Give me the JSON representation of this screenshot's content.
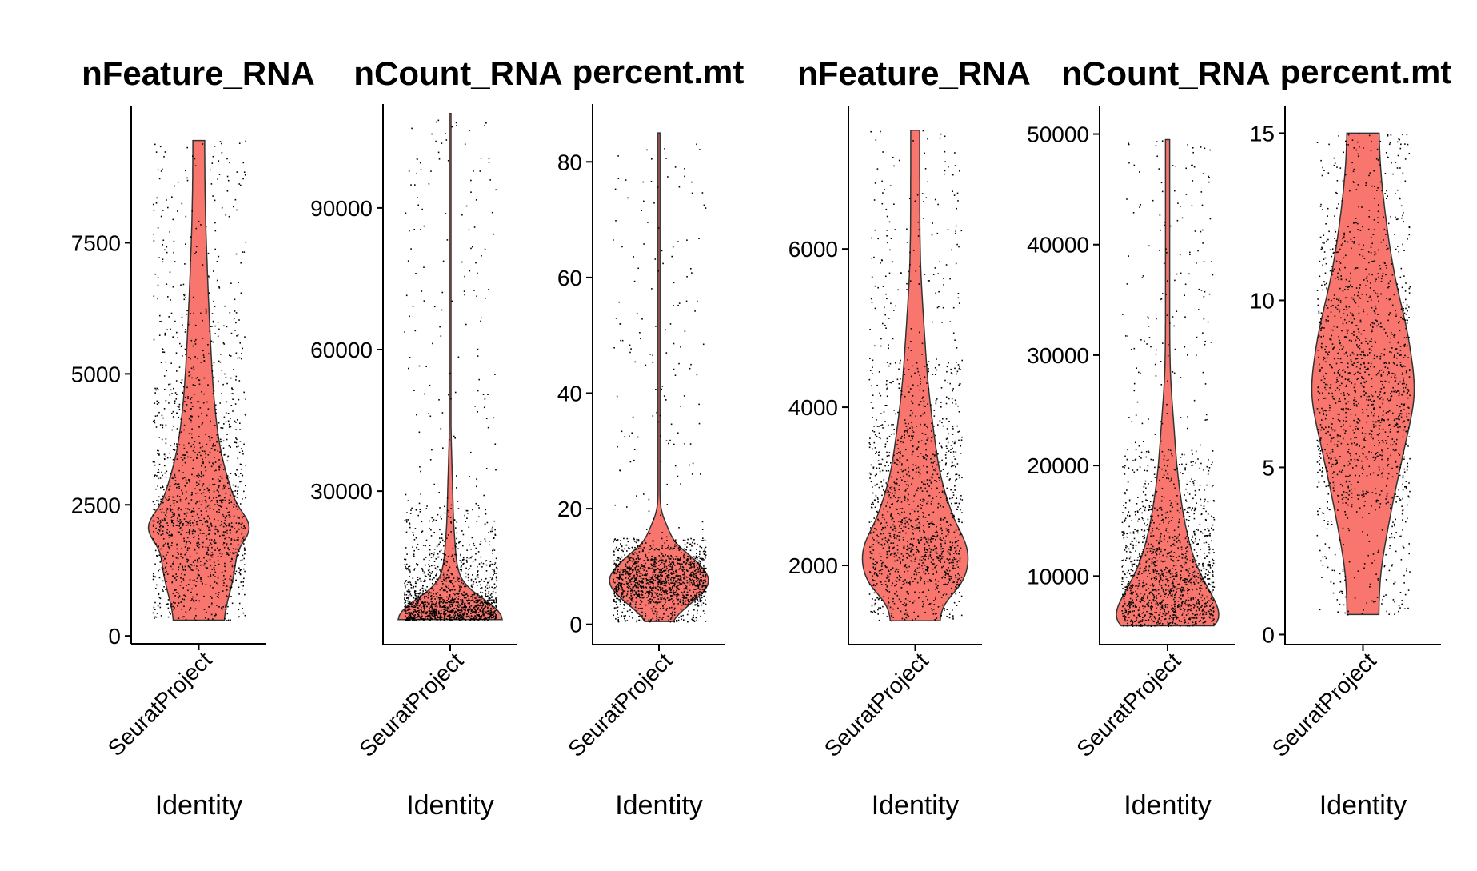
{
  "colors": {
    "violin_fill": "#f8766d",
    "violin_stroke": "#333333",
    "points": "#000000",
    "axis": "#000000"
  },
  "chart_data": [
    {
      "type": "violin",
      "title": "nFeature_RNA",
      "category": "SeuratProject",
      "xlabel": "Identity",
      "yticks": [
        0,
        2500,
        5000,
        7500
      ],
      "ylim": [
        -150,
        10100
      ],
      "data_range": [
        300,
        9450
      ],
      "quantiles": [
        300,
        1050,
        1500,
        1950,
        2200,
        2600,
        3100,
        3800,
        4800,
        6200,
        9450
      ]
    },
    {
      "type": "violin",
      "title": "nCount_RNA",
      "category": "SeuratProject",
      "xlabel": "Identity",
      "yticks": [
        30000,
        60000,
        90000
      ],
      "ylim": [
        -2500,
        112000
      ],
      "data_range": [
        2800,
        110000
      ],
      "quantiles": [
        2800,
        3400,
        4200,
        5000,
        6000,
        7200,
        9000,
        12000,
        17000,
        27000,
        110000
      ]
    },
    {
      "type": "violin",
      "title": "percent.mt",
      "category": "SeuratProject",
      "xlabel": "Identity",
      "yticks": [
        0,
        20,
        40,
        60,
        80
      ],
      "ylim": [
        -3.5,
        90
      ],
      "data_range": [
        0.5,
        85
      ],
      "quantiles": [
        0.5,
        3.5,
        5,
        6.2,
        7.2,
        8.2,
        9.3,
        10.5,
        12,
        15,
        85
      ]
    },
    {
      "type": "violin",
      "title": "nFeature_RNA",
      "category": "SeuratProject",
      "xlabel": "Identity",
      "yticks": [
        2000,
        4000,
        6000
      ],
      "ylim": [
        1000,
        7800
      ],
      "data_range": [
        1300,
        7500
      ],
      "quantiles": [
        1300,
        1750,
        1950,
        2150,
        2350,
        2600,
        2900,
        3300,
        3800,
        4600,
        7500
      ]
    },
    {
      "type": "violin",
      "title": "nCount_RNA",
      "category": "SeuratProject",
      "xlabel": "Identity",
      "yticks": [
        10000,
        20000,
        30000,
        40000,
        50000
      ],
      "ylim": [
        3800,
        52500
      ],
      "data_range": [
        5500,
        49500
      ],
      "quantiles": [
        5500,
        6400,
        7300,
        8300,
        9400,
        10700,
        12300,
        14300,
        17000,
        21500,
        49500
      ]
    },
    {
      "type": "violin",
      "title": "percent.mt",
      "category": "SeuratProject",
      "xlabel": "Identity",
      "yticks": [
        0,
        5,
        10,
        15
      ],
      "ylim": [
        -0.3,
        15.8
      ],
      "data_range": [
        0.6,
        15
      ],
      "quantiles": [
        0.6,
        3.6,
        4.9,
        5.9,
        6.8,
        7.6,
        8.5,
        9.4,
        10.5,
        12.0,
        15
      ]
    }
  ]
}
